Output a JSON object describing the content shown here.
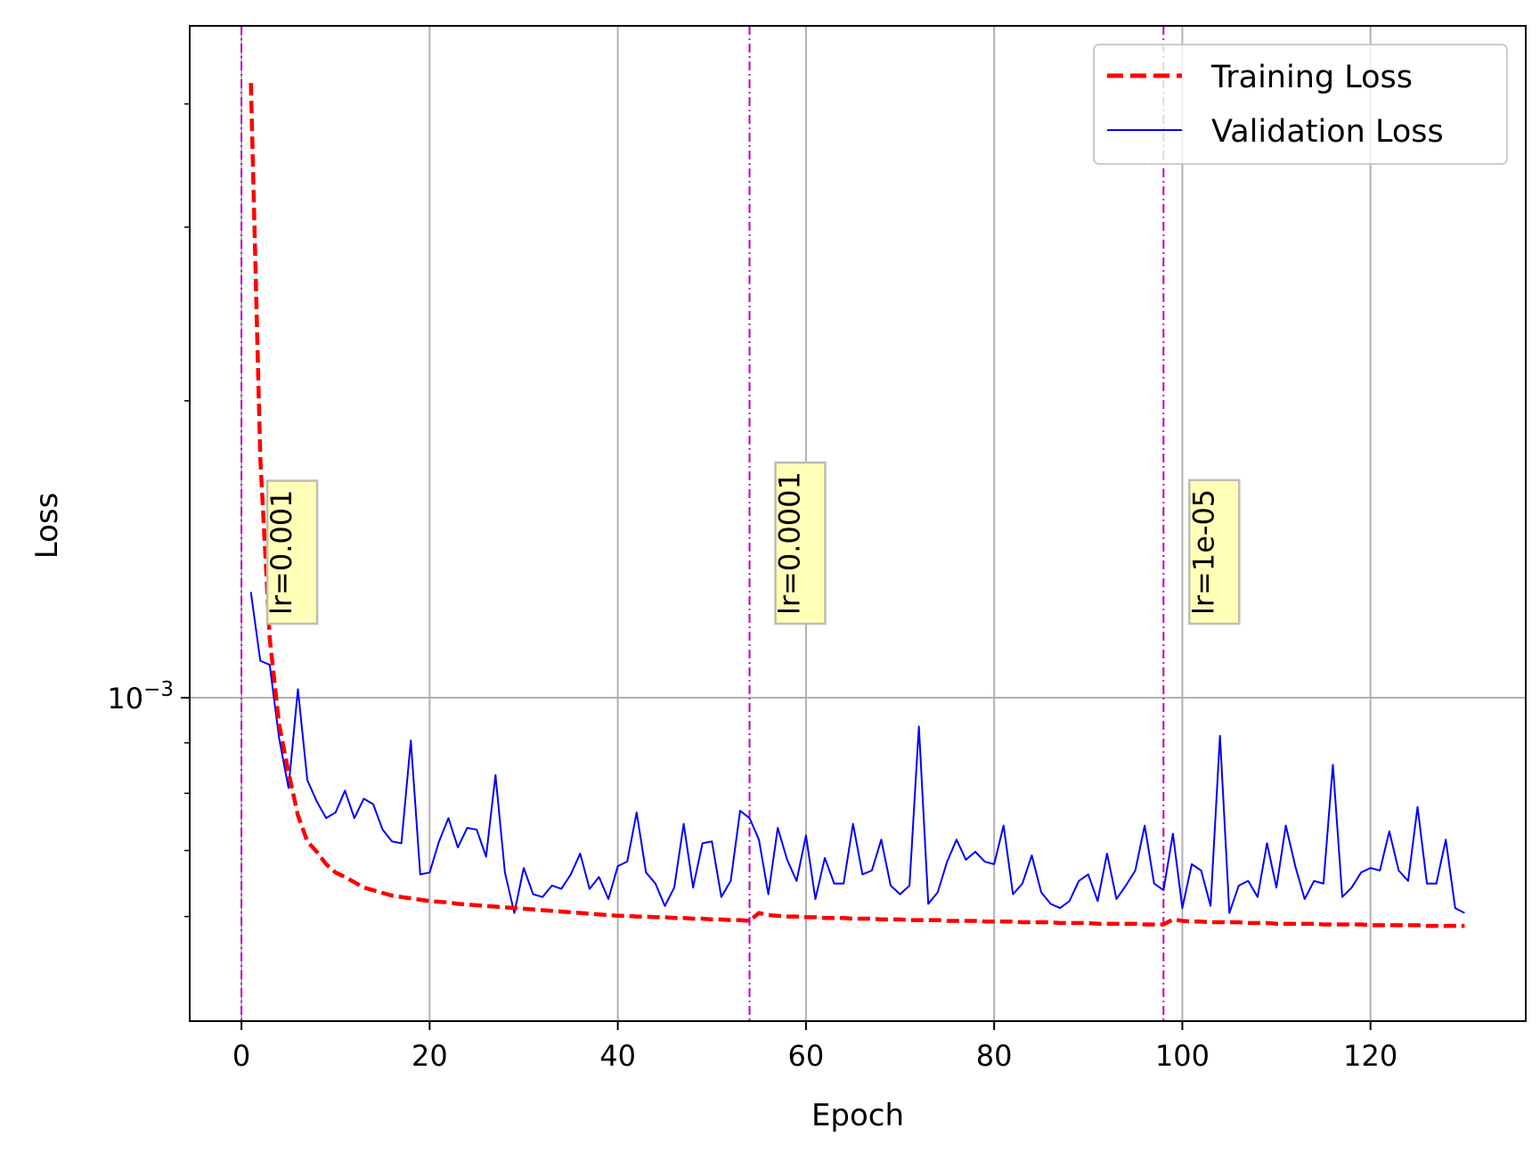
{
  "chart_data": {
    "type": "line",
    "xlabel": "Epoch",
    "ylabel": "Loss",
    "yscale": "log",
    "xlim": [
      -5.5,
      136.5
    ],
    "ylim": [
      0.00047,
      0.0048
    ],
    "grid": true,
    "legend_position": "top-right",
    "x_ticks": [
      0,
      20,
      40,
      60,
      80,
      100,
      120
    ],
    "y_major_ticks": [
      {
        "value": 0.001,
        "label_base": "10",
        "label_exp": "−3"
      }
    ],
    "y_minor_ticks": [
      0.0006,
      0.0007,
      0.0008,
      0.0009,
      0.002,
      0.003,
      0.004
    ],
    "colors": {
      "training": "#ff0000",
      "validation": "#0000ff",
      "lr_line": "#bf00bf",
      "lr_box_fill": "#ffffb8",
      "lr_box_edge": "#bdbdb0",
      "grid": "#b0b0b0"
    },
    "series": [
      {
        "name": "Training Loss",
        "style": "dashed",
        "x_start": 1,
        "values": [
          0.0042,
          0.00175,
          0.00115,
          0.00094,
          0.00084,
          0.00076,
          0.000715,
          0.000698,
          0.000678,
          0.000665,
          0.000658,
          0.00065,
          0.000642,
          0.000638,
          0.000634,
          0.00063,
          0.000628,
          0.000626,
          0.000624,
          0.000622,
          0.000621,
          0.00062,
          0.000618,
          0.000617,
          0.000616,
          0.000615,
          0.000614,
          0.000613,
          0.000612,
          0.000611,
          0.00061,
          0.000609,
          0.000608,
          0.000607,
          0.000606,
          0.000605,
          0.000604,
          0.000603,
          0.000602,
          0.000601,
          0.000601,
          0.0006,
          0.0006,
          0.000599,
          0.000599,
          0.000598,
          0.000598,
          0.000597,
          0.000597,
          0.000596,
          0.000596,
          0.000595,
          0.000595,
          0.000594,
          0.000605,
          0.000602,
          0.000601,
          0.0006,
          0.0006,
          0.000599,
          0.000599,
          0.000598,
          0.000598,
          0.000598,
          0.000597,
          0.000597,
          0.000597,
          0.000596,
          0.000596,
          0.000596,
          0.000595,
          0.000595,
          0.000595,
          0.000595,
          0.000594,
          0.000594,
          0.000594,
          0.000594,
          0.000593,
          0.000593,
          0.000593,
          0.000593,
          0.000592,
          0.000592,
          0.000592,
          0.000592,
          0.000591,
          0.000591,
          0.000591,
          0.000591,
          0.00059,
          0.00059,
          0.00059,
          0.00059,
          0.00059,
          0.000589,
          0.000589,
          0.000589,
          0.000596,
          0.000594,
          0.000593,
          0.000593,
          0.000592,
          0.000592,
          0.000592,
          0.000592,
          0.000591,
          0.000591,
          0.000591,
          0.00059,
          0.00059,
          0.00059,
          0.00059,
          0.00059,
          0.000589,
          0.000589,
          0.000589,
          0.000589,
          0.000589,
          0.000588,
          0.000588,
          0.000588,
          0.000588,
          0.000588,
          0.000588,
          0.000587,
          0.000587,
          0.000587,
          0.000587,
          0.000587
        ]
      },
      {
        "name": "Validation Loss",
        "style": "solid",
        "x_start": 1,
        "values": [
          0.00128,
          0.00109,
          0.00108,
          0.00091,
          0.00081,
          0.00102,
          0.000825,
          0.000785,
          0.000755,
          0.000765,
          0.000805,
          0.000755,
          0.00079,
          0.00078,
          0.000735,
          0.000715,
          0.000712,
          0.000905,
          0.000662,
          0.000665,
          0.000715,
          0.000755,
          0.000705,
          0.000738,
          0.000735,
          0.00069,
          0.000835,
          0.000665,
          0.000605,
          0.000672,
          0.000632,
          0.000628,
          0.000645,
          0.00064,
          0.000662,
          0.000695,
          0.00064,
          0.000658,
          0.000625,
          0.000675,
          0.000682,
          0.000765,
          0.000665,
          0.000648,
          0.000615,
          0.000642,
          0.000745,
          0.000642,
          0.000712,
          0.000715,
          0.000628,
          0.000652,
          0.000768,
          0.000755,
          0.000718,
          0.000632,
          0.000738,
          0.000685,
          0.000652,
          0.000725,
          0.000625,
          0.000688,
          0.000648,
          0.000648,
          0.000745,
          0.000662,
          0.000668,
          0.000718,
          0.000645,
          0.000632,
          0.000645,
          0.000935,
          0.000618,
          0.000635,
          0.000682,
          0.000718,
          0.000685,
          0.000698,
          0.000682,
          0.000678,
          0.000742,
          0.000632,
          0.000648,
          0.000692,
          0.000635,
          0.000618,
          0.000612,
          0.000622,
          0.000652,
          0.000662,
          0.000622,
          0.000695,
          0.000625,
          0.000645,
          0.000668,
          0.000742,
          0.000648,
          0.000638,
          0.000728,
          0.000612,
          0.000678,
          0.000668,
          0.000615,
          0.000915,
          0.000605,
          0.000645,
          0.000652,
          0.000628,
          0.000712,
          0.000642,
          0.000742,
          0.000675,
          0.000625,
          0.000652,
          0.000648,
          0.000855,
          0.000628,
          0.000642,
          0.000665,
          0.000672,
          0.000668,
          0.000732,
          0.000668,
          0.000652,
          0.000775,
          0.000648,
          0.000648,
          0.000718,
          0.000612,
          0.000605
        ]
      }
    ],
    "lr_changes": [
      {
        "epoch": 0,
        "label": "lr=0.001"
      },
      {
        "epoch": 54,
        "label": "lr=0.0001"
      },
      {
        "epoch": 98,
        "label": "lr=1e-05"
      }
    ]
  }
}
